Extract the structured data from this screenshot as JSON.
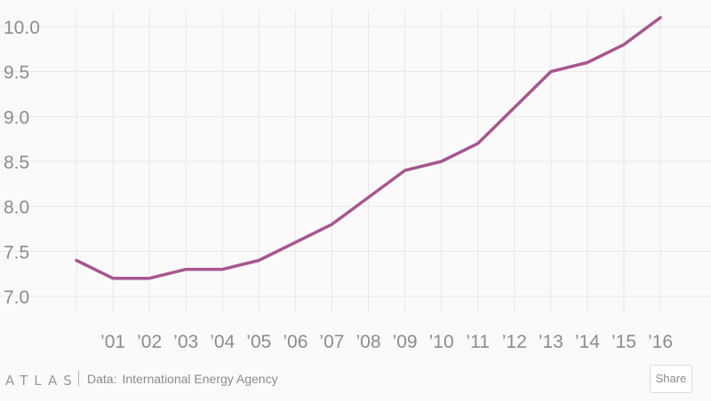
{
  "chart_data": {
    "type": "line",
    "x": [
      "2000",
      "2001",
      "2002",
      "2003",
      "2004",
      "2005",
      "2006",
      "2007",
      "2008",
      "2009",
      "2010",
      "2011",
      "2012",
      "2013",
      "2014",
      "2015",
      "2016"
    ],
    "x_tick_labels": [
      "’01",
      "’02",
      "’03",
      "’04",
      "’05",
      "’06",
      "’07",
      "’08",
      "’09",
      "’10",
      "’11",
      "’12",
      "’13",
      "’14",
      "’15",
      "’16"
    ],
    "series": [
      {
        "values": [
          7.4,
          7.2,
          7.2,
          7.3,
          7.3,
          7.4,
          7.6,
          7.8,
          8.1,
          8.4,
          8.5,
          8.7,
          9.1,
          9.5,
          9.6,
          9.8,
          10.1
        ]
      }
    ],
    "y_ticks": [
      "7.0",
      "7.5",
      "8.0",
      "8.5",
      "9.0",
      "9.5",
      "10.0"
    ],
    "ylim": [
      7.0,
      10.0
    ],
    "grid": true,
    "line_color": "#a8568e",
    "grid_color": "#e8e8e8"
  },
  "footer": {
    "logo": "ATLAS",
    "source_label": "Data:",
    "source": "International Energy Agency",
    "share_label": "Share"
  }
}
